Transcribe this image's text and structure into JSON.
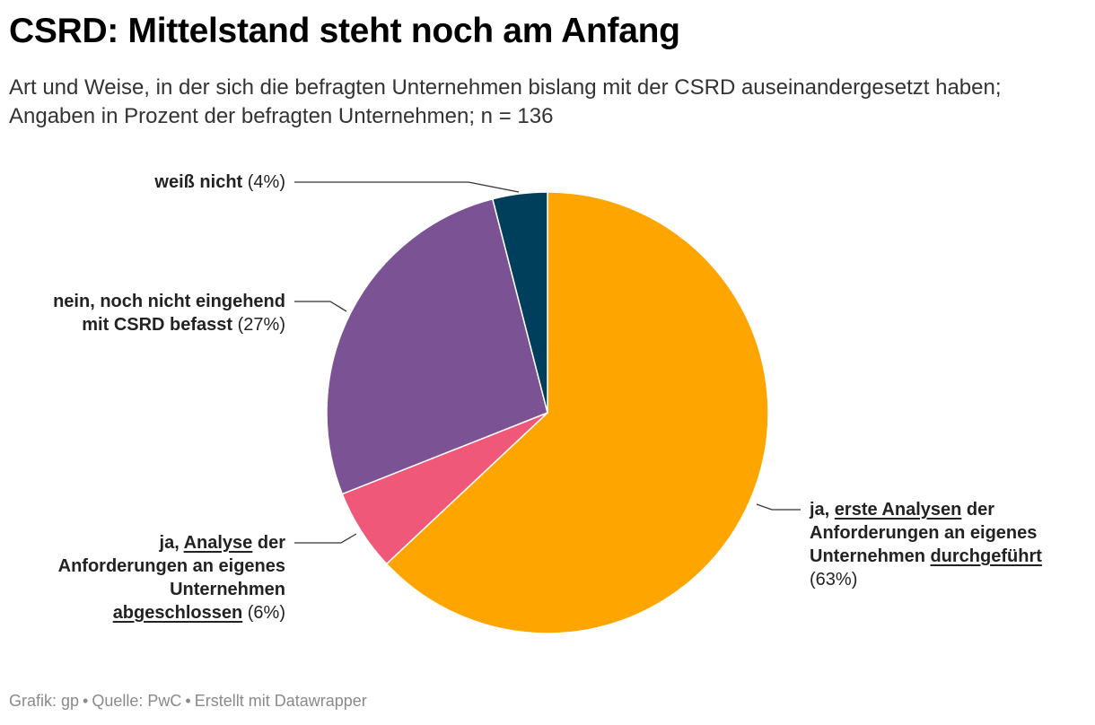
{
  "header": {
    "title": "CSRD: Mittelstand steht noch am Anfang",
    "subtitle": "Art und Weise, in der sich die befragten Unternehmen bislang mit der CSRD auseinandergesetzt haben; Angaben in Prozent der befragten Unternehmen; n = 136"
  },
  "chart_data": {
    "type": "pie",
    "slices": [
      {
        "label": "ja, erste Analysen der Anforderungen an eigenes Unternehmen durchgeführt",
        "value": 63,
        "color": "#FFA500"
      },
      {
        "label": "ja, Analyse der Anforderungen an eigenes Unternehmen abgeschlossen",
        "value": 6,
        "color": "#F0587A"
      },
      {
        "label": "nein, noch nicht eingehend mit CSRD befasst",
        "value": 27,
        "color": "#7B5293"
      },
      {
        "label": "weiß nicht",
        "value": 4,
        "color": "#003F5C"
      }
    ],
    "unit": "%"
  },
  "labels": {
    "weiss_nicht": {
      "bold": "weiß nicht",
      "pct": "(4%)"
    },
    "nein": {
      "bold_line1": "nein, noch nicht eingehend",
      "bold_line2": "mit CSRD befasst",
      "pct": "(27%)"
    },
    "ja_abgeschlossen": {
      "bold_a": "ja, ",
      "bold_u1": "Analyse",
      "bold_b": " der",
      "bold_line2": "Anforderungen an eigenes",
      "bold_line3": "Unternehmen",
      "bold_u2": "abgeschlossen",
      "pct": "(6%)"
    },
    "ja_erste": {
      "bold_a": "ja, ",
      "bold_u1": "erste Analysen",
      "bold_b": " der",
      "bold_line2": "Anforderungen an eigenes",
      "bold_line3a": "Unternehmen ",
      "bold_u2": "durchgeführt",
      "pct": "(63%)"
    }
  },
  "footer": {
    "grafik": "Grafik: gp",
    "quelle": "Quelle: PwC",
    "erstellt": "Erstellt mit Datawrapper",
    "separator": "•"
  }
}
